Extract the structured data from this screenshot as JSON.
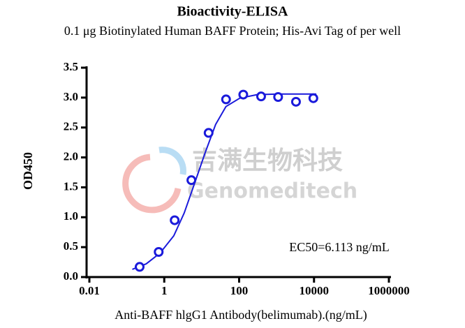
{
  "chart_data": {
    "type": "scatter",
    "title": "Bioactivity-ELISA",
    "subtitle": "0.1 μg Biotinylated Human BAFF Protein; His-Avi Tag of per well",
    "x_label": "Anti-BAFF hlgG1 Antibody(belimumab).(ng/mL)",
    "y_label": "OD450",
    "annotation": "EC50=6.113 ng/mL",
    "log_x": true,
    "color": "#1a1adb",
    "points": {
      "x": [
        0.22,
        0.71,
        1.9,
        5.3,
        15.3,
        44.7,
        129,
        386,
        1100,
        3300,
        9600
      ],
      "values": [
        0.17,
        0.42,
        0.95,
        1.62,
        2.41,
        2.97,
        3.05,
        3.02,
        3.01,
        2.93,
        2.99
      ]
    },
    "fit": {
      "x": [
        0.14,
        0.33,
        0.77,
        1.8,
        3.4,
        6.5,
        12.4,
        23.5,
        44.5,
        104,
        302,
        1100,
        11500
      ],
      "values": [
        0.13,
        0.22,
        0.4,
        0.69,
        1.07,
        1.57,
        2.08,
        2.55,
        2.85,
        2.99,
        3.05,
        3.06,
        3.06
      ]
    },
    "xlim": [
      0.01,
      1000000
    ],
    "xticks": [
      0.01,
      1,
      100,
      10000,
      1000000
    ],
    "ylim": [
      0,
      3.5
    ],
    "yticks": [
      {
        "value": 0,
        "label": "0.0"
      },
      0.5,
      {
        "value": 1,
        "label": "1.0"
      },
      1.5,
      {
        "value": 2,
        "label": "2.0"
      },
      2.5,
      {
        "value": 3,
        "label": "3.0"
      },
      3.5
    ],
    "watermark": {
      "cn": "吉满生物科技",
      "en": "Genomeditech"
    }
  }
}
